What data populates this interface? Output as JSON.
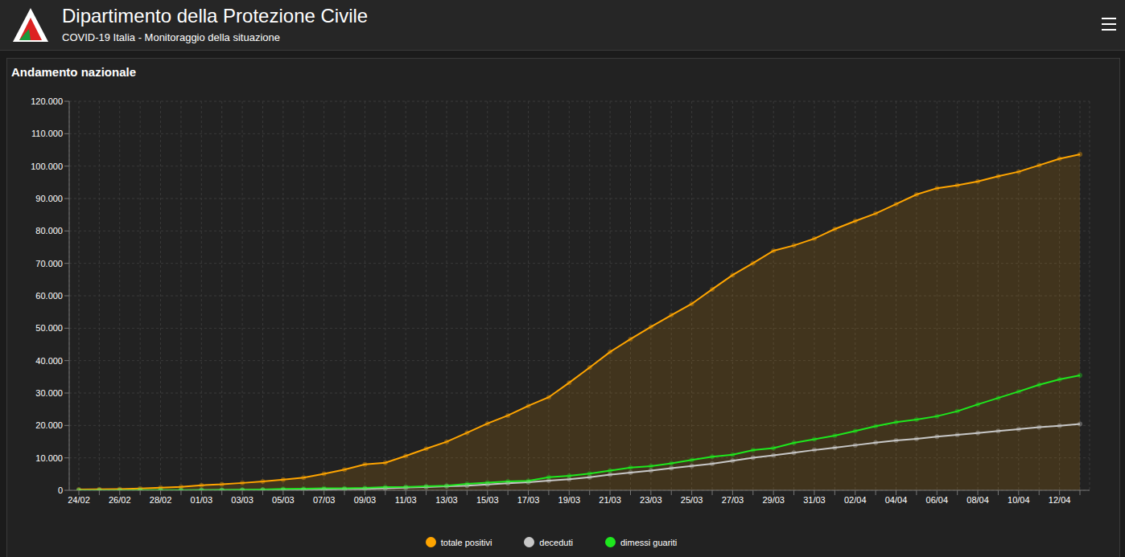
{
  "header": {
    "title": "Dipartimento della Protezione Civile",
    "subtitle": "COVID-19 Italia - Monitoraggio della situazione"
  },
  "chart_data": {
    "type": "line",
    "title": "Andamento nazionale",
    "categories": [
      "24/02",
      null,
      "26/02",
      null,
      "28/02",
      null,
      "01/03",
      null,
      "03/03",
      null,
      "05/03",
      null,
      "07/03",
      null,
      "09/03",
      null,
      "11/03",
      null,
      "13/03",
      null,
      "15/03",
      null,
      "17/03",
      null,
      "19/03",
      null,
      "21/03",
      null,
      "23/03",
      null,
      "25/03",
      null,
      "27/03",
      null,
      "29/03",
      null,
      "31/03",
      null,
      "02/04",
      null,
      "04/04",
      null,
      "06/04",
      null,
      "08/04",
      null,
      "10/04",
      null,
      "12/04",
      null
    ],
    "series": [
      {
        "name": "totale positivi",
        "color": "#ffa500",
        "type": "area",
        "marker": "circle",
        "values": [
          221,
          311,
          385,
          588,
          821,
          1049,
          1577,
          1835,
          2263,
          2706,
          3296,
          3916,
          5061,
          6387,
          7985,
          8514,
          10590,
          12839,
          14955,
          17750,
          20603,
          23073,
          26062,
          28710,
          33190,
          37860,
          42681,
          46638,
          50418,
          54030,
          57521,
          62013,
          66414,
          70065,
          73880,
          75528,
          77635,
          80572,
          83049,
          85388,
          88274,
          91246,
          93187,
          94067,
          95262,
          96877,
          98273,
          100269,
          102253,
          103616
        ]
      },
      {
        "name": "deceduti",
        "color": "#c8c8c8",
        "type": "line",
        "marker": "circle",
        "values": [
          7,
          10,
          12,
          17,
          21,
          29,
          34,
          52,
          79,
          107,
          148,
          197,
          233,
          366,
          463,
          631,
          827,
          1016,
          1266,
          1441,
          1809,
          2158,
          2503,
          2978,
          3405,
          4032,
          4825,
          5476,
          6077,
          6820,
          7503,
          8165,
          9134,
          10023,
          10779,
          11591,
          12428,
          13155,
          13915,
          14681,
          15362,
          15887,
          16523,
          17127,
          17669,
          18279,
          18849,
          19468,
          19899,
          20465
        ]
      },
      {
        "name": "dimessi guariti",
        "color": "#1ee81e",
        "type": "line",
        "marker": "circle",
        "values": [
          1,
          1,
          3,
          45,
          46,
          50,
          83,
          149,
          160,
          276,
          414,
          523,
          589,
          622,
          724,
          1004,
          1045,
          1258,
          1439,
          1966,
          2335,
          2749,
          2941,
          4025,
          4440,
          5129,
          6072,
          7024,
          7432,
          8326,
          9362,
          10361,
          10950,
          12384,
          13030,
          14620,
          15729,
          16847,
          18278,
          19758,
          20996,
          21815,
          22837,
          24392,
          26491,
          28470,
          30455,
          32534,
          34211,
          35435
        ]
      }
    ],
    "ylim": [
      0,
      120000
    ],
    "yticks": [
      0,
      {
        "value": 10000,
        "label": "10.000"
      },
      {
        "value": 20000,
        "label": "20.000"
      },
      {
        "value": 30000,
        "label": "30.000"
      },
      {
        "value": 40000,
        "label": "40.000"
      },
      {
        "value": 50000,
        "label": "50.000"
      },
      {
        "value": 60000,
        "label": "60.000"
      },
      {
        "value": 70000,
        "label": "70.000"
      },
      {
        "value": 80000,
        "label": "80.000"
      },
      {
        "value": 90000,
        "label": "90.000"
      },
      {
        "value": 100000,
        "label": "100.000"
      },
      {
        "value": 110000,
        "label": "110.000"
      },
      {
        "value": 120000,
        "label": "120.000"
      }
    ],
    "grid": true,
    "legend": "bottom"
  }
}
